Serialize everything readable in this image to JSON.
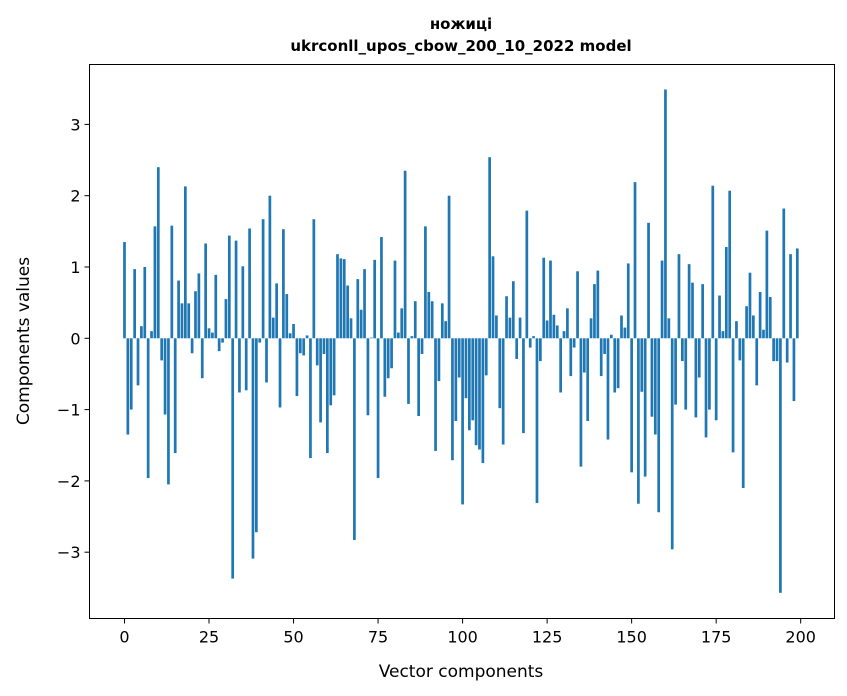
{
  "chart_data": {
    "type": "bar",
    "title": "ножиці",
    "subtitle": "ukrconll_upos_cbow_200_10_2022 model",
    "xlabel": "Vector components",
    "ylabel": "Components values",
    "xlim": [
      -10.35,
      210
    ],
    "ylim": [
      -3.93,
      3.84
    ],
    "xticks": [
      0,
      25,
      50,
      75,
      100,
      125,
      150,
      175,
      200
    ],
    "yticks": [
      -3,
      -2,
      -1,
      0,
      1,
      2,
      3
    ],
    "xtick_labels": [
      "0",
      "25",
      "50",
      "75",
      "100",
      "125",
      "150",
      "175",
      "200"
    ],
    "ytick_labels": [
      "−3",
      "−2",
      "−1",
      "0",
      "1",
      "2",
      "3"
    ],
    "grid": false,
    "color": "#1f77b4",
    "values": [
      1.35,
      -1.35,
      -1.0,
      0.97,
      -0.66,
      0.17,
      1.0,
      -1.96,
      0.1,
      1.57,
      2.4,
      -0.31,
      -1.07,
      -2.05,
      1.58,
      -1.61,
      0.81,
      0.49,
      2.13,
      0.49,
      -0.21,
      0.66,
      0.91,
      -0.56,
      1.33,
      0.14,
      0.08,
      0.89,
      -0.18,
      -0.06,
      0.55,
      1.44,
      -3.37,
      1.37,
      -0.76,
      1.01,
      -0.73,
      1.54,
      -3.09,
      -2.72,
      -0.06,
      1.67,
      -0.62,
      2.0,
      0.29,
      0.77,
      -0.97,
      1.53,
      0.62,
      0.07,
      0.2,
      -0.81,
      -0.21,
      -0.24,
      0.04,
      -1.68,
      1.67,
      -0.38,
      -1.18,
      -0.22,
      -1.61,
      -0.94,
      -0.8,
      1.18,
      1.12,
      1.11,
      0.74,
      0.28,
      -2.83,
      0.83,
      0.4,
      0.97,
      -1.08,
      0.01,
      1.1,
      -1.96,
      1.42,
      -0.82,
      -0.56,
      -0.42,
      1.09,
      0.08,
      0.42,
      2.35,
      -0.92,
      0.03,
      0.52,
      -1.09,
      -0.22,
      1.57,
      0.65,
      0.52,
      -1.58,
      -0.6,
      0.49,
      0.24,
      2.0,
      -1.71,
      -1.16,
      -0.55,
      -2.33,
      -0.84,
      -1.29,
      -1.15,
      -1.5,
      -1.56,
      -1.75,
      -0.52,
      2.54,
      1.15,
      0.32,
      -0.98,
      -1.49,
      0.59,
      0.29,
      0.8,
      -0.29,
      0.29,
      -1.33,
      1.79,
      -0.13,
      0.03,
      -2.31,
      -0.32,
      1.13,
      0.25,
      1.09,
      0.33,
      0.18,
      -0.76,
      0.1,
      0.42,
      -0.53,
      -0.13,
      0.94,
      -1.8,
      -0.48,
      -1.16,
      0.28,
      0.76,
      0.95,
      -0.53,
      -0.22,
      -1.42,
      0.05,
      -0.76,
      -0.7,
      0.32,
      0.15,
      1.05,
      -1.88,
      2.19,
      -2.32,
      -0.75,
      -1.94,
      1.62,
      -1.1,
      -1.35,
      -2.44,
      1.09,
      3.49,
      0.28,
      -2.96,
      -0.93,
      1.18,
      -0.32,
      -1.0,
      1.04,
      0.78,
      -1.11,
      -0.55,
      0.76,
      -1.39,
      -1.0,
      2.14,
      -1.15,
      0.6,
      0.1,
      1.28,
      2.07,
      -1.6,
      0.24,
      -0.31,
      -2.1,
      0.45,
      0.92,
      0.32,
      -0.66,
      0.65,
      0.12,
      1.51,
      0.58,
      -0.32,
      -0.32,
      -3.57,
      1.82,
      -0.34,
      1.18,
      -0.88,
      1.26
    ]
  }
}
